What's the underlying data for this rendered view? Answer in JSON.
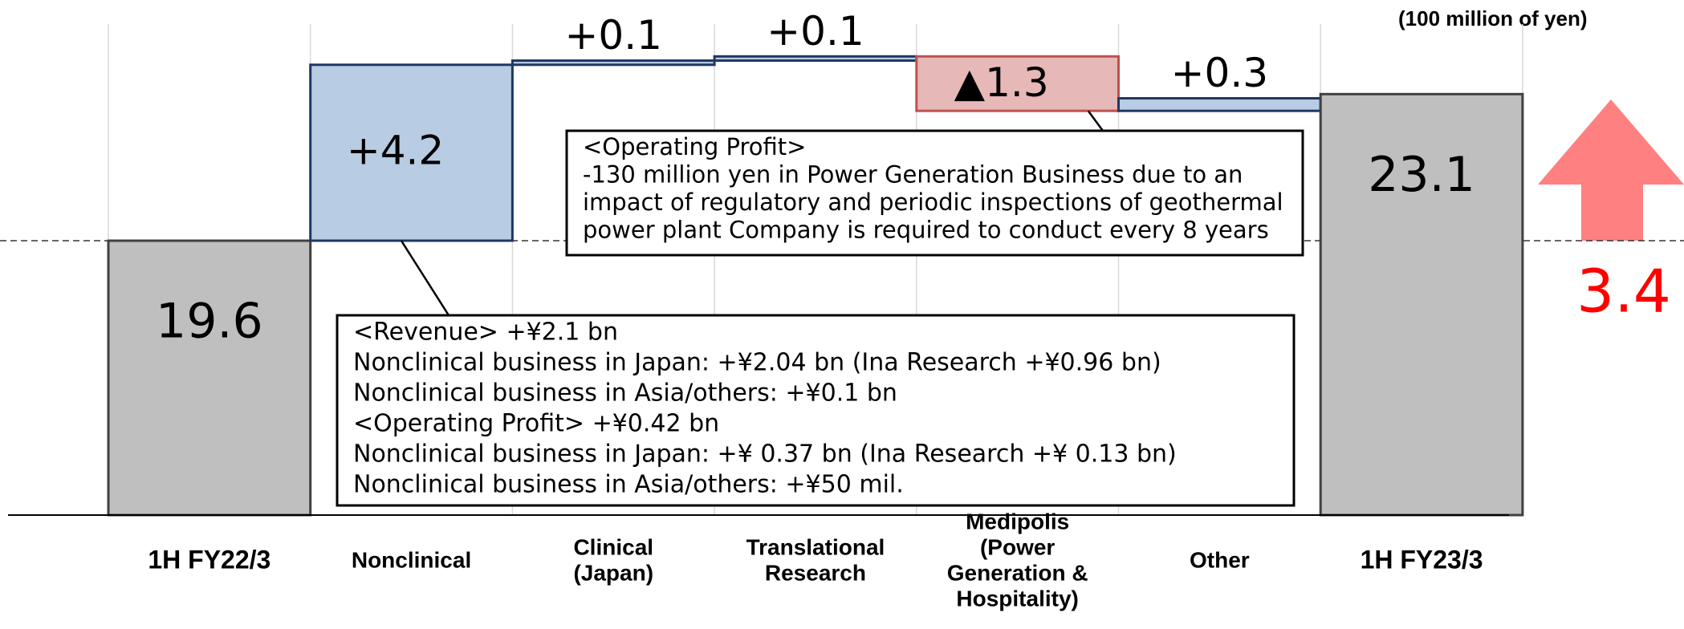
{
  "chart_data": {
    "type": "waterfall",
    "unit_label": "(100 million of yen)",
    "categories": [
      [
        "1H FY22/3"
      ],
      [
        "Nonclinical"
      ],
      [
        "Clinical",
        "(Japan)"
      ],
      [
        "Translational",
        "Research"
      ],
      [
        "Medipolis",
        "(Power",
        "Generation &",
        "Hospitality)"
      ],
      [
        "Other"
      ],
      [
        "1H FY23/3"
      ]
    ],
    "measure": [
      "absolute",
      "relative",
      "relative",
      "relative",
      "relative",
      "relative",
      "absolute"
    ],
    "values": [
      19.6,
      4.2,
      0.1,
      0.1,
      -1.3,
      0.3,
      23.1
    ],
    "value_labels": [
      "19.6",
      "+4.2",
      "+0.1",
      "+0.1",
      "▲1.3",
      "+0.3",
      "23.1"
    ],
    "colors": {
      "total": "#bfbfbf",
      "increase": "#b8cce4",
      "decrease": "#e6b8b7"
    },
    "total_change": 3.4,
    "annotations": [
      {
        "target": 4,
        "lines": [
          "<Operating Profit>",
          " -130 million yen in Power Generation Business due to an",
          "impact of regulatory and periodic inspections of geothermal",
          "power plant Company is required to conduct every 8 years"
        ]
      },
      {
        "target": 1,
        "lines": [
          "<Revenue> +¥2.1 bn",
          "Nonclinical business in Japan: +¥2.04 bn (Ina Research +¥0.96 bn)",
          "Nonclinical business in Asia/others: +¥0.1 bn",
          "<Operating Profit> +¥0.42 bn",
          "Nonclinical business in Japan: +¥ 0.37 bn (Ina Research +¥ 0.13 bn)",
          "Nonclinical business in Asia/others: +¥50 mil."
        ]
      }
    ]
  }
}
